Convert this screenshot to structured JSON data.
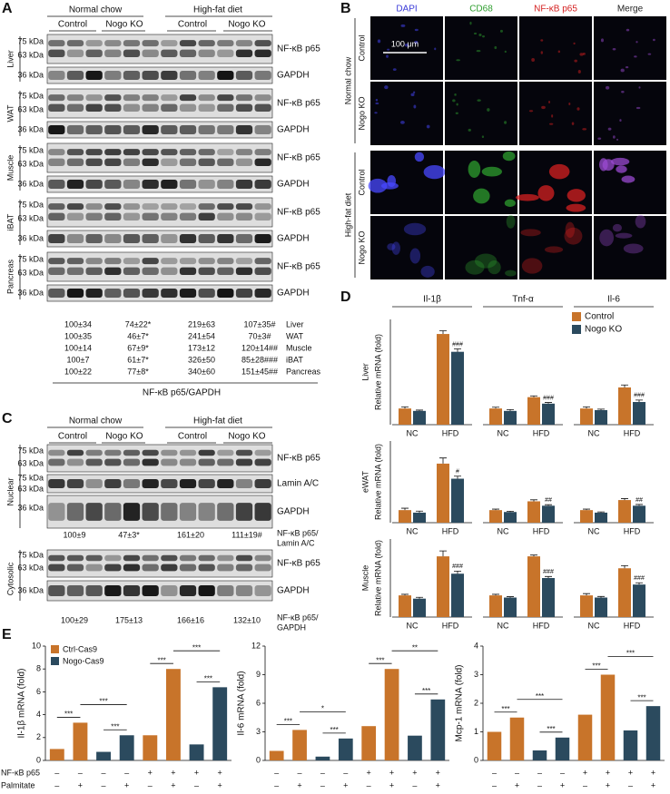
{
  "panel_a": {
    "label": "A",
    "diets": [
      "Normal chow",
      "High-fat diet"
    ],
    "genotypes": [
      "Control",
      "Nogo KO"
    ],
    "tissues": [
      "Liver",
      "WAT",
      "Muscle",
      "iBAT",
      "Pancreas"
    ],
    "ladder": [
      "75 kDa",
      "63 kDa",
      "36 kDa"
    ],
    "bands": [
      "NF-κB p65",
      "GAPDH"
    ],
    "quant": [
      [
        "100±34",
        "74±22*",
        "219±63",
        "107±35#"
      ],
      [
        "100±35",
        "46±7*",
        "241±54",
        "70±3#"
      ],
      [
        "100±14",
        "67±9*",
        "173±12",
        "120±14##"
      ],
      [
        "100±7",
        "61±7*",
        "326±50",
        "85±28###"
      ],
      [
        "100±22",
        "77±8*",
        "340±60",
        "151±45##"
      ]
    ],
    "caption": "NF-κB p65/GAPDH"
  },
  "panel_b": {
    "label": "B",
    "channels": [
      "DAPI",
      "CD68",
      "NF-κB p65",
      "Merge"
    ],
    "channel_colors": [
      "#3a3ad8",
      "#2e9e2e",
      "#d42020",
      "#222222"
    ],
    "diets": [
      "Normal chow",
      "High-fat diet"
    ],
    "genotypes": [
      "Control",
      "Nogo KO"
    ],
    "scale_bar": "100 μm"
  },
  "panel_c": {
    "label": "C",
    "diets": [
      "Normal chow",
      "High-fat diet"
    ],
    "genotypes": [
      "Control",
      "Nogo KO"
    ],
    "ladder": [
      "75 kDa",
      "63 kDa",
      "36 kDa"
    ],
    "fractions": [
      {
        "name": "Nuclear",
        "bands": [
          "NF-κB p65",
          "Lamin A/C",
          "GAPDH"
        ],
        "quant": [
          "100±9",
          "47±3*",
          "161±20",
          "111±19#"
        ],
        "caption": [
          "NF-κB p65/",
          "Lamin A/C"
        ]
      },
      {
        "name": "Cytosolic",
        "bands": [
          "NF-κB p65",
          "GAPDH"
        ],
        "quant": [
          "100±29",
          "175±13",
          "166±16",
          "132±10"
        ],
        "caption": [
          "NF-κB p65/",
          "GAPDH"
        ]
      }
    ]
  },
  "chart_data": [
    {
      "type": "grouped_bar",
      "label": "D",
      "ylabel": "Relative mRNA (fold)",
      "groups": [
        "Il-1β",
        "Tnf-α",
        "Il-6"
      ],
      "categories": [
        "NC",
        "HFD",
        "NC",
        "HFD",
        "NC",
        "HFD"
      ],
      "series": [
        {
          "name": "Control",
          "color": "#c8742a"
        },
        {
          "name": "Nogo KO",
          "color": "#2b4a5e"
        }
      ],
      "legend": "upper right",
      "rows": [
        {
          "name": "Liver",
          "ylim": [
            0,
            6.5
          ],
          "values": [
            [
              1.0,
              5.6,
              1.0,
              1.7,
              1.0,
              2.3
            ],
            [
              0.85,
              4.5,
              0.85,
              1.3,
              0.9,
              1.4
            ]
          ],
          "errors": [
            [
              0.1,
              0.2,
              0.08,
              0.08,
              0.1,
              0.15
            ],
            [
              0.05,
              0.18,
              0.08,
              0.07,
              0.06,
              0.12
            ]
          ],
          "annotations": [
            [
              null,
              null,
              null,
              null,
              null,
              null
            ],
            [
              null,
              "###",
              null,
              "###",
              null,
              "###"
            ]
          ]
        },
        {
          "name": "eWAT",
          "ylim": [
            0,
            6.5
          ],
          "values": [
            [
              1.0,
              4.7,
              1.0,
              1.7,
              1.0,
              1.8
            ],
            [
              0.8,
              3.5,
              0.85,
              1.35,
              0.8,
              1.35
            ]
          ],
          "errors": [
            [
              0.15,
              0.45,
              0.08,
              0.12,
              0.08,
              0.12
            ],
            [
              0.12,
              0.2,
              0.06,
              0.08,
              0.06,
              0.1
            ]
          ],
          "annotations": [
            [
              null,
              null,
              null,
              null,
              null,
              null
            ],
            [
              null,
              "#",
              null,
              "##",
              null,
              "##"
            ]
          ]
        },
        {
          "name": "Muscle",
          "ylim": [
            0,
            3.6
          ],
          "values": [
            [
              1.0,
              2.8,
              1.0,
              2.8,
              1.0,
              2.25
            ],
            [
              0.85,
              2.0,
              0.9,
              1.8,
              0.9,
              1.5
            ]
          ],
          "errors": [
            [
              0.05,
              0.25,
              0.05,
              0.06,
              0.08,
              0.12
            ],
            [
              0.06,
              0.12,
              0.04,
              0.07,
              0.05,
              0.08
            ]
          ],
          "annotations": [
            [
              null,
              null,
              null,
              null,
              null,
              null
            ],
            [
              null,
              "###",
              null,
              "###",
              null,
              "###"
            ]
          ]
        }
      ]
    },
    {
      "type": "bar",
      "label": "E",
      "series": [
        {
          "name": "Ctrl-Cas9",
          "color": "#c8742a"
        },
        {
          "name": "Nogo-Cas9",
          "color": "#2b4a5e"
        }
      ],
      "legend": "upper left",
      "conditions": [
        "NF-κB p65",
        "Palmitate"
      ],
      "condition_signs": [
        [
          "–",
          "–",
          "–",
          "–",
          "+",
          "+",
          "+",
          "+"
        ],
        [
          "–",
          "+",
          "–",
          "+",
          "–",
          "+",
          "–",
          "+"
        ]
      ],
      "charts": [
        {
          "ylabel": "Il-1β mRNA (fold)",
          "ylim": [
            0,
            10
          ],
          "yticks": [
            0,
            2,
            4,
            6,
            8,
            10
          ],
          "values": [
            [
              1.0,
              3.3,
              null,
              null,
              2.2,
              8.0,
              null,
              null
            ],
            [
              null,
              null,
              0.75,
              2.2,
              null,
              null,
              1.4,
              6.4
            ]
          ],
          "brackets": [
            {
              "bars": [
                0,
                1
              ],
              "label": "***"
            },
            {
              "bars": [
                1,
                3
              ],
              "label": "***"
            },
            {
              "bars": [
                2,
                3
              ],
              "label": "***"
            },
            {
              "bars": [
                4,
                5
              ],
              "label": "***"
            },
            {
              "bars": [
                5,
                7
              ],
              "label": "***"
            },
            {
              "bars": [
                6,
                7
              ],
              "label": "***"
            }
          ]
        },
        {
          "ylabel": "Il-6 mRNA (fold)",
          "ylim": [
            0,
            12
          ],
          "yticks": [
            0,
            3,
            6,
            9,
            12
          ],
          "values": [
            [
              1.0,
              3.2,
              null,
              null,
              3.6,
              9.6,
              null,
              null
            ],
            [
              null,
              null,
              0.4,
              2.3,
              null,
              null,
              2.6,
              6.4
            ]
          ],
          "brackets": [
            {
              "bars": [
                0,
                1
              ],
              "label": "***"
            },
            {
              "bars": [
                1,
                3
              ],
              "label": "*"
            },
            {
              "bars": [
                2,
                3
              ],
              "label": "***"
            },
            {
              "bars": [
                4,
                5
              ],
              "label": "***"
            },
            {
              "bars": [
                5,
                7
              ],
              "label": "**"
            },
            {
              "bars": [
                6,
                7
              ],
              "label": "***"
            }
          ]
        },
        {
          "ylabel": "Mcp-1 mRNA (fold)",
          "ylim": [
            0,
            4
          ],
          "yticks": [
            0,
            1,
            2,
            3,
            4
          ],
          "values": [
            [
              1.0,
              1.5,
              null,
              null,
              1.6,
              3.0,
              null,
              null
            ],
            [
              null,
              null,
              0.35,
              0.8,
              null,
              null,
              1.05,
              1.9
            ]
          ],
          "brackets": [
            {
              "bars": [
                0,
                1
              ],
              "label": "***"
            },
            {
              "bars": [
                1,
                3
              ],
              "label": "***"
            },
            {
              "bars": [
                2,
                3
              ],
              "label": "***"
            },
            {
              "bars": [
                4,
                5
              ],
              "label": "***"
            },
            {
              "bars": [
                5,
                7
              ],
              "label": "***"
            },
            {
              "bars": [
                6,
                7
              ],
              "label": "***"
            }
          ]
        }
      ]
    }
  ]
}
